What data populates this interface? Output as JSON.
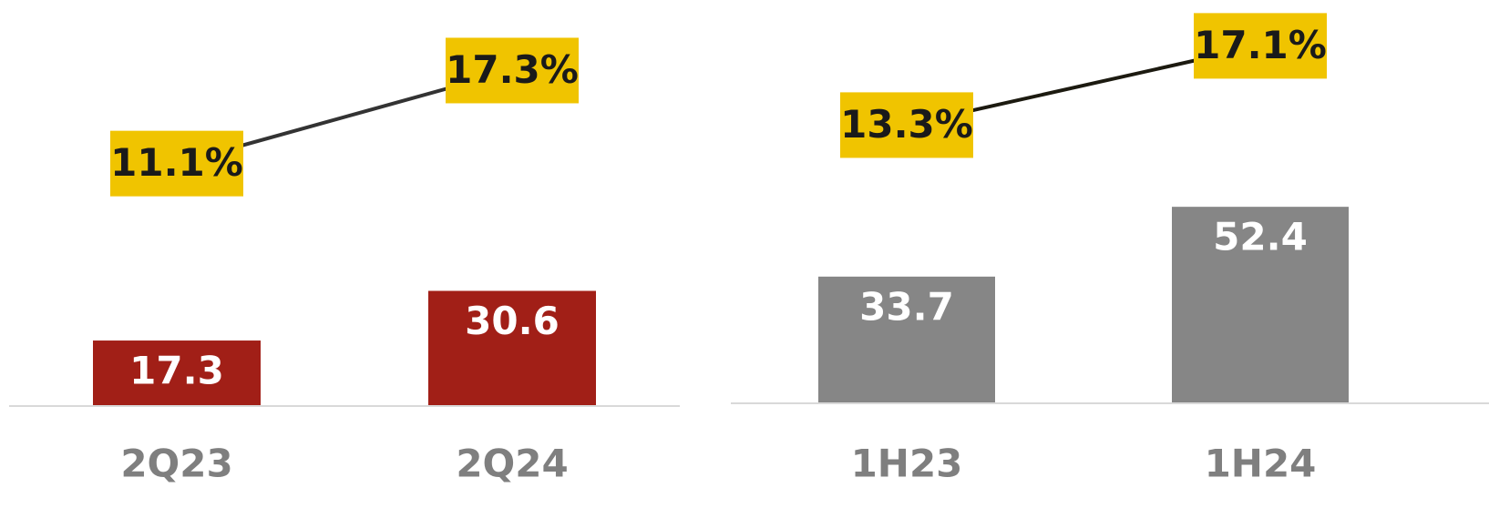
{
  "chart_data": [
    {
      "type": "bar",
      "categories": [
        "2Q23",
        "2Q24"
      ],
      "values": [
        17.3,
        30.6
      ],
      "color": "#a11f17",
      "ylim": [
        0,
        108.5
      ],
      "line": {
        "values": [
          11.1,
          17.3
        ],
        "value_labels": [
          "11.1%",
          "17.3%"
        ],
        "color": "#333333",
        "label_bg": "#f0c400"
      },
      "y2lim": [
        -5,
        22
      ]
    },
    {
      "type": "bar",
      "categories": [
        "1H23",
        "1H24"
      ],
      "values": [
        33.7,
        52.4
      ],
      "color": "#868686",
      "ylim": [
        0,
        107.8
      ],
      "line": {
        "values": [
          13.3,
          17.1
        ],
        "value_labels": [
          "13.3%",
          "17.1%"
        ],
        "color": "#1c1a10",
        "label_bg": "#f0c400"
      },
      "y2lim": [
        0,
        19.3
      ]
    }
  ]
}
